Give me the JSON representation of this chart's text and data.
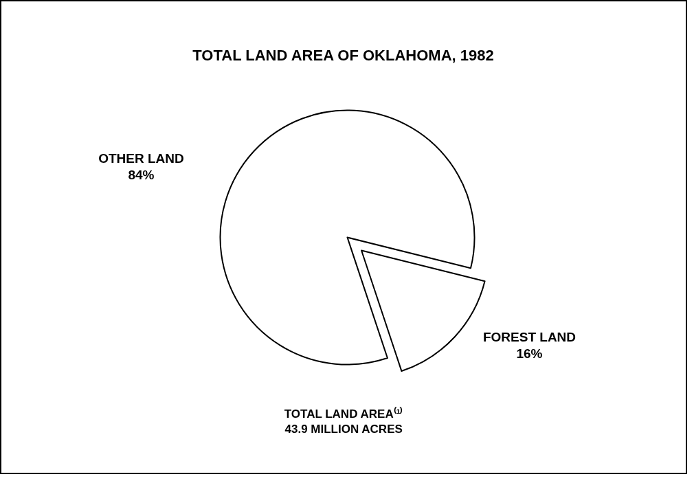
{
  "chart_data": {
    "type": "pie",
    "title": "TOTAL LAND AREA OF OKLAHOMA, 1982",
    "categories": [
      "OTHER LAND",
      "FOREST LAND"
    ],
    "values": [
      84,
      16
    ],
    "colors": [
      "#ffffff",
      "#ffffff"
    ],
    "value_labels": [
      "84%",
      "16%"
    ],
    "annotations": [
      "TOTAL LAND AREA⁽¹⁾",
      "43.9 MILLION ACRES"
    ]
  }
}
